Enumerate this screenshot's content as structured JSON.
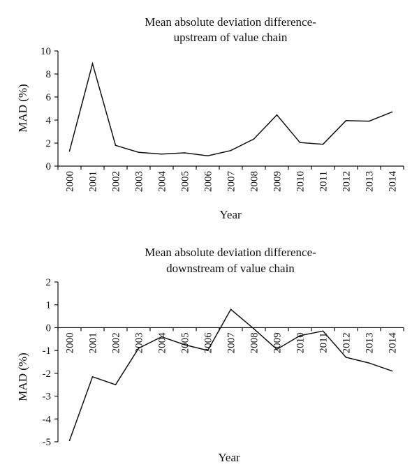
{
  "chart_data": [
    {
      "type": "line",
      "title": "Mean absolute deviation difference-upstream of value chain",
      "title_lines": [
        "Mean absolute deviation difference-",
        "upstream of value chain"
      ],
      "xlabel": "Year",
      "ylabel": "MAD (%)",
      "categories": [
        "2000",
        "2001",
        "2002",
        "2003",
        "2004",
        "2005",
        "2006",
        "2007",
        "2008",
        "2009",
        "2010",
        "2011",
        "2012",
        "2013",
        "2014"
      ],
      "values": [
        1.3,
        8.9,
        1.8,
        1.2,
        1.05,
        1.15,
        0.9,
        1.35,
        2.35,
        4.45,
        2.05,
        1.9,
        3.95,
        3.9,
        4.7
      ],
      "ylim": [
        0,
        10
      ],
      "yticks": [
        "0",
        "2",
        "4",
        "6",
        "8",
        "10"
      ],
      "grid": false,
      "legend": "none"
    },
    {
      "type": "line",
      "title": "Mean absolute deviation difference-downstream of value chain",
      "title_lines": [
        "Mean absolute deviation difference-",
        "downstream of value chain"
      ],
      "xlabel": "Year",
      "ylabel": "MAD (%)",
      "categories": [
        "2000",
        "2001",
        "2002",
        "2003",
        "2004",
        "2005",
        "2006",
        "2007",
        "2008",
        "2009",
        "2010",
        "2011",
        "2012",
        "2013",
        "2014"
      ],
      "values": [
        -4.95,
        -2.15,
        -2.5,
        -0.9,
        -0.4,
        -0.75,
        -1.0,
        0.8,
        -0.05,
        -0.95,
        -0.35,
        -0.15,
        -1.3,
        -1.55,
        -1.9
      ],
      "ylim": [
        -5,
        2
      ],
      "yticks": [
        "-5",
        "-4",
        "-3",
        "-2",
        "-1",
        "0",
        "1",
        "2"
      ],
      "grid": false,
      "legend": "none"
    }
  ]
}
